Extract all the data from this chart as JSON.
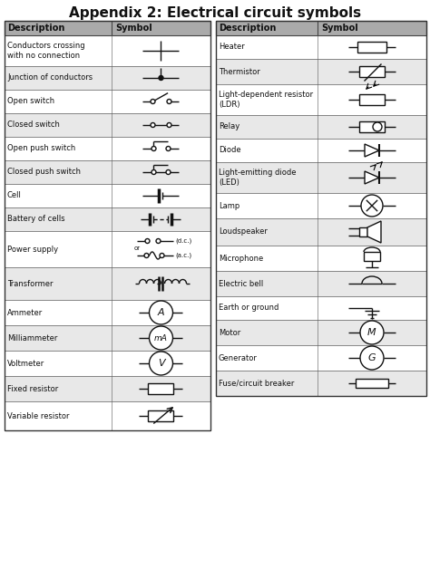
{
  "title": "Appendix 2: Electrical circuit symbols",
  "title_fontsize": 11,
  "header_bg": "#aaaaaa",
  "row_bg_light": "#e8e8e8",
  "row_bg_white": "#ffffff",
  "text_color": "#111111",
  "symbol_color": "#111111",
  "left_rows": [
    "Conductors crossing\nwith no connection",
    "Junction of conductors",
    "Open switch",
    "Closed switch",
    "Open push switch",
    "Closed push switch",
    "Cell",
    "Battery of cells",
    "Power supply",
    "Transformer",
    "Ammeter",
    "Milliammeter",
    "Voltmeter",
    "Fixed resistor",
    "Variable resistor"
  ],
  "right_rows": [
    "Heater",
    "Thermistor",
    "Light-dependent resistor\n(LDR)",
    "Relay",
    "Diode",
    "Light-emitting diode\n(LED)",
    "Lamp",
    "Loudspeaker",
    "Microphone",
    "Electric bell",
    "Earth or ground",
    "Motor",
    "Generator",
    "Fuse/circuit breaker"
  ],
  "fig_width": 4.74,
  "fig_height": 6.28,
  "dpi": 100
}
